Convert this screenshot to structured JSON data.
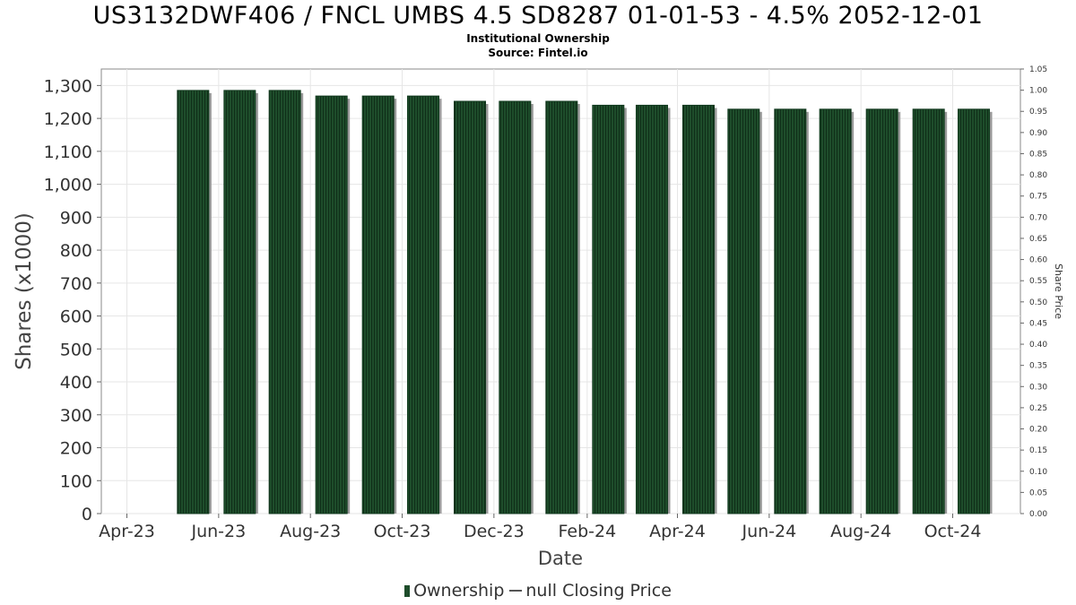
{
  "chart_data": {
    "type": "bar",
    "title": "US3132DWF406 / FNCL UMBS 4.5 SD8287 01-01-53 - 4.5% 2052-12-01",
    "subtitle_lines": [
      "Institutional Ownership",
      "Source: Fintel.io"
    ],
    "xlabel": "Date",
    "ylabel": "Shares (x1000)",
    "y2label": "Share Price",
    "x_tick_labels": [
      "Apr-23",
      "Jun-23",
      "Aug-23",
      "Oct-23",
      "Dec-23",
      "Feb-24",
      "Apr-24",
      "Jun-24",
      "Aug-24",
      "Oct-24"
    ],
    "y_ticks": [
      "0",
      "100",
      "200",
      "300",
      "400",
      "500",
      "600",
      "700",
      "800",
      "900",
      "1,000",
      "1,100",
      "1,200",
      "1,300"
    ],
    "y2_ticks": [
      "0.00",
      "0.05",
      "0.10",
      "0.15",
      "0.20",
      "0.25",
      "0.30",
      "0.35",
      "0.40",
      "0.45",
      "0.50",
      "0.55",
      "0.60",
      "0.65",
      "0.70",
      "0.75",
      "0.80",
      "0.85",
      "0.90",
      "0.95",
      "1.00",
      "1.05"
    ],
    "ylim": [
      0,
      1350
    ],
    "y2lim": [
      0.0,
      1.05
    ],
    "x_range": [
      "2023-03-15",
      "2024-11-15"
    ],
    "grid": true,
    "legend_position": "bottom",
    "series": [
      {
        "name": "Ownership",
        "color": "#1e4d2b",
        "points": [
          {
            "date": "2023-05-15",
            "value": 1285
          },
          {
            "date": "2023-06-15",
            "value": 1285
          },
          {
            "date": "2023-07-15",
            "value": 1285
          },
          {
            "date": "2023-08-15",
            "value": 1268
          },
          {
            "date": "2023-09-15",
            "value": 1268
          },
          {
            "date": "2023-10-15",
            "value": 1268
          },
          {
            "date": "2023-11-15",
            "value": 1252
          },
          {
            "date": "2023-12-15",
            "value": 1252
          },
          {
            "date": "2024-01-15",
            "value": 1252
          },
          {
            "date": "2024-02-15",
            "value": 1240
          },
          {
            "date": "2024-03-15",
            "value": 1240
          },
          {
            "date": "2024-04-15",
            "value": 1240
          },
          {
            "date": "2024-05-15",
            "value": 1228
          },
          {
            "date": "2024-06-15",
            "value": 1228
          },
          {
            "date": "2024-07-15",
            "value": 1228
          },
          {
            "date": "2024-08-15",
            "value": 1228
          },
          {
            "date": "2024-09-15",
            "value": 1228
          },
          {
            "date": "2024-10-15",
            "value": 1228
          }
        ]
      }
    ],
    "legend": {
      "ownership_label": "Ownership",
      "price_label": "null Closing Price"
    }
  }
}
